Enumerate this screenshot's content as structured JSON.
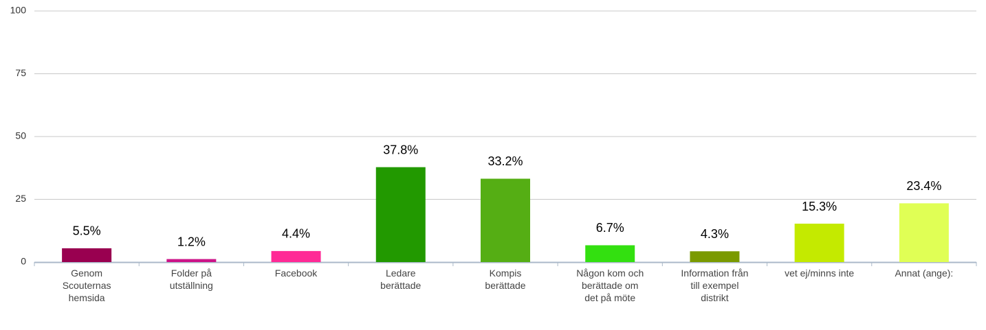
{
  "chart_data": {
    "type": "bar",
    "categories": [
      "Genom Scouternas hemsida",
      "Folder på utställning",
      "Facebook",
      "Ledare berättade",
      "Kompis berättade",
      "Någon kom och berättade om det på möte",
      "Information från till exempel distrikt",
      "vet ej/minns inte",
      "Annat (ange):"
    ],
    "values": [
      5.5,
      1.2,
      4.4,
      37.8,
      33.2,
      6.7,
      4.3,
      15.3,
      23.4
    ],
    "value_labels": [
      "5.5%",
      "1.2%",
      "4.4%",
      "37.8%",
      "33.2%",
      "6.7%",
      "4.3%",
      "15.3%",
      "23.4%"
    ],
    "colors": [
      "#990050",
      "#cc1488",
      "#ff2a96",
      "#229900",
      "#55ae14",
      "#33e010",
      "#7a9a00",
      "#c4ea00",
      "#e0ff55"
    ],
    "ylim": [
      0,
      100
    ],
    "yticks": [
      0,
      25,
      50,
      75,
      100
    ],
    "grid": true
  }
}
